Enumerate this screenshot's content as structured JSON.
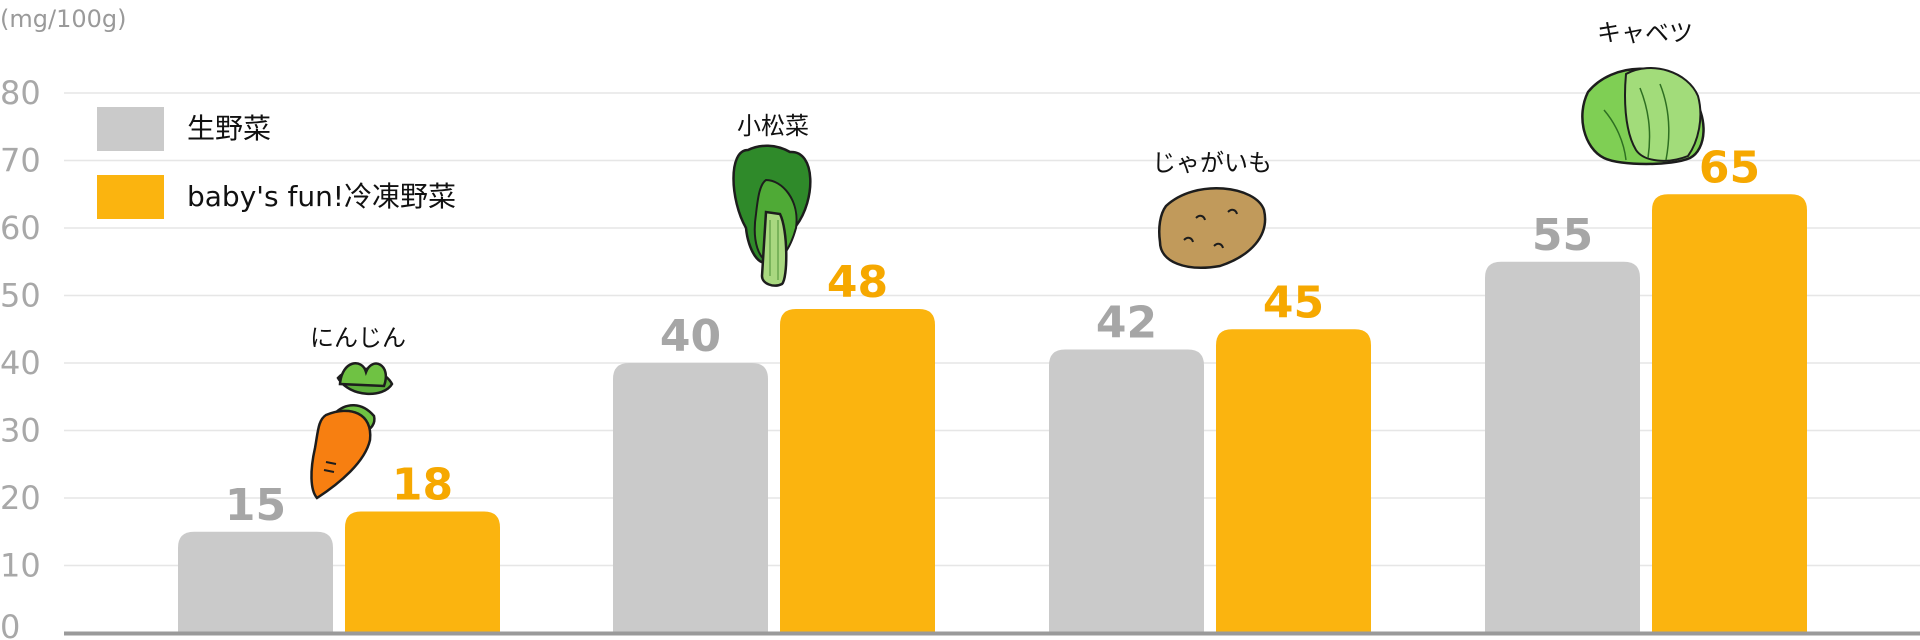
{
  "chart_data": {
    "type": "bar",
    "unit_label": "(mg/100g)",
    "categories": [
      "にんじん",
      "小松菜",
      "じゃがいも",
      "キャベツ"
    ],
    "category_icons": [
      "carrot-icon",
      "komatsuna-icon",
      "potato-icon",
      "cabbage-icon"
    ],
    "series": [
      {
        "name": "生野菜",
        "values": [
          15,
          40,
          42,
          55
        ],
        "color": "#cacaca",
        "label_color": "#a6a6a6"
      },
      {
        "name": "baby's fun!冷凍野菜",
        "values": [
          18,
          48,
          45,
          65
        ],
        "color": "#fbb40f",
        "label_color": "#f6a800"
      }
    ],
    "ylim": [
      0,
      80
    ],
    "yticks": [
      "0",
      "10",
      "20",
      "30",
      "40",
      "50",
      "60",
      "70",
      "80"
    ],
    "grid": true,
    "legend_position": "top-left"
  }
}
